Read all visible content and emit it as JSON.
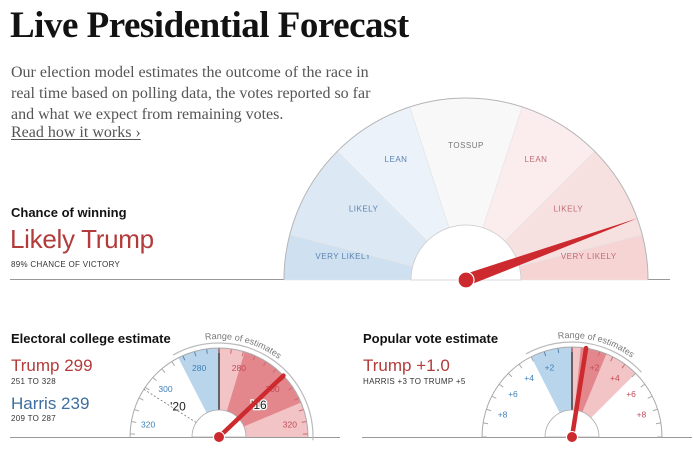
{
  "header": {
    "title": "Live Presidential Forecast",
    "intro": "Our election model estimates the outcome of the race in real time based on polling data, the votes reported so far and what we expect from remaining votes.",
    "read_link": "Read how it works ›"
  },
  "chance": {
    "label": "Chance of winning",
    "value": "Likely Trump",
    "sub": "89% CHANCE OF VICTORY",
    "probability_trump": 0.89
  },
  "electoral": {
    "label": "Electoral college estimate",
    "trump": {
      "label": "Trump 299",
      "range": "251 TO 328"
    },
    "harris": {
      "label": "Harris 239",
      "range": "209 TO 287"
    },
    "range_caption": "Range of estimates"
  },
  "popular": {
    "label": "Popular vote estimate",
    "headline": "Trump +1.0",
    "range": "HARRIS +3 TO TRUMP +5",
    "range_caption": "Range of estimates"
  },
  "colors": {
    "rep": "#b23b3b",
    "dem": "#3e6e9f",
    "needle": "#cc2a2e"
  },
  "chart_data": [
    {
      "type": "gauge",
      "title": "Chance of winning",
      "scale": "Probability Trump wins (0 = certain Harris, 1 = certain Trump)",
      "range": [
        0,
        1
      ],
      "needle_value": 0.89,
      "bands": [
        {
          "label": "VERY LIKELY",
          "side": "dem",
          "from": 0.0,
          "to": 0.08
        },
        {
          "label": "LIKELY",
          "side": "dem",
          "from": 0.08,
          "to": 0.25
        },
        {
          "label": "LEAN",
          "side": "dem",
          "from": 0.25,
          "to": 0.4
        },
        {
          "label": "TOSSUP",
          "side": "none",
          "from": 0.4,
          "to": 0.6
        },
        {
          "label": "LEAN",
          "side": "rep",
          "from": 0.6,
          "to": 0.75
        },
        {
          "label": "LIKELY",
          "side": "rep",
          "from": 0.75,
          "to": 0.92
        },
        {
          "label": "VERY LIKELY",
          "side": "rep",
          "from": 0.92,
          "to": 1.0
        }
      ]
    },
    {
      "type": "gauge",
      "title": "Electoral college estimate",
      "center_value": 270,
      "tick_labels_dem": [
        "280",
        "300",
        "320"
      ],
      "tick_labels_rep": [
        "280",
        "300",
        "320"
      ],
      "tick_values": [
        280,
        300,
        320
      ],
      "needle": {
        "party": "rep",
        "value": 299
      },
      "dem_range": [
        270,
        287
      ],
      "rep_range": [
        270,
        328
      ],
      "rep_inner_range": [
        270,
        312
      ],
      "markers": [
        {
          "label": "'16",
          "party": "rep",
          "value": 304
        },
        {
          "label": "'20",
          "party": "dem",
          "value": 306
        }
      ],
      "range_caption": "Range of estimates"
    },
    {
      "type": "gauge",
      "title": "Popular vote estimate",
      "center_value": 0,
      "tick_labels_dem": [
        "+2",
        "+4",
        "+6",
        "+8"
      ],
      "tick_labels_rep": [
        "+2",
        "+4",
        "+6",
        "+8"
      ],
      "tick_values": [
        2,
        4,
        6,
        8
      ],
      "needle": {
        "party": "rep",
        "value": 1.0
      },
      "dem_range": [
        0,
        3
      ],
      "rep_range": [
        0,
        5
      ],
      "rep_inner_range": [
        0,
        2.5
      ],
      "range_caption": "Range of estimates"
    }
  ]
}
